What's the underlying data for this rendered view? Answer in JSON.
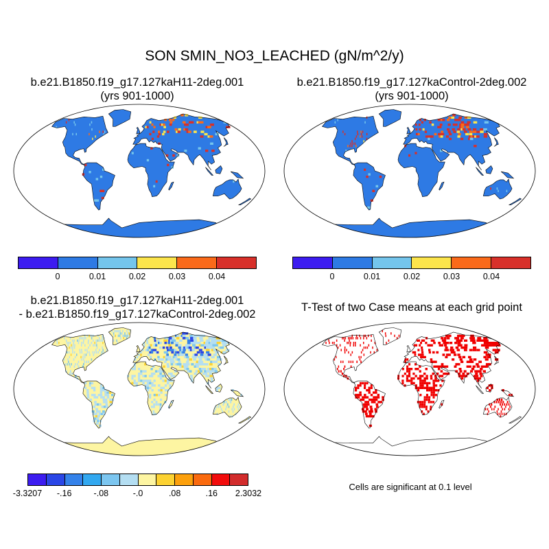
{
  "main_title": "SON SMIN_NO3_LEACHED (gN/m^2/y)",
  "panels": {
    "top_left": {
      "title_line1": "b.e21.B1850.f19_g17.127kaH11-2deg.001",
      "title_line2": "(yrs 901-1000)"
    },
    "top_right": {
      "title_line1": "b.e21.B1850.f19_g17.127kaControl-2deg.002",
      "title_line2": "(yrs 901-1000)"
    },
    "bottom_left": {
      "title_line1": "b.e21.B1850.f19_g17.127kaH11-2deg.001",
      "title_line2": "- b.e21.B1850.f19_g17.127kaControl-2deg.002"
    },
    "bottom_right": {
      "title_line1": "T-Test of two Case means at each grid point",
      "note": "Cells are significant at 0.1 level"
    }
  },
  "colorbar_top": {
    "colors": [
      "#3c1cf0",
      "#2e7ae4",
      "#74c5ec",
      "#fce54c",
      "#fa6a1a",
      "#d8302a"
    ],
    "labels": [
      "0",
      "0.01",
      "0.02",
      "0.03",
      "0.04"
    ]
  },
  "colorbar_bottom": {
    "colors": [
      "#3c1cf0",
      "#2a46e6",
      "#3482ea",
      "#32a8f0",
      "#7cc6f0",
      "#b4def2",
      "#fdf5a2",
      "#fcd232",
      "#fca00c",
      "#fa6a0e",
      "#f20c0c",
      "#d22c2c"
    ],
    "labels": [
      "-3.3207",
      "-.16",
      "-.08",
      "-.0",
      ".08",
      ".16",
      "2.3032"
    ]
  },
  "colors": {
    "ocean": "#ffffff",
    "land_base_abs": "#2e7ae4",
    "land_base_diff": "#fdf5a2",
    "significant": "#f00000",
    "outline": "#000000"
  }
}
